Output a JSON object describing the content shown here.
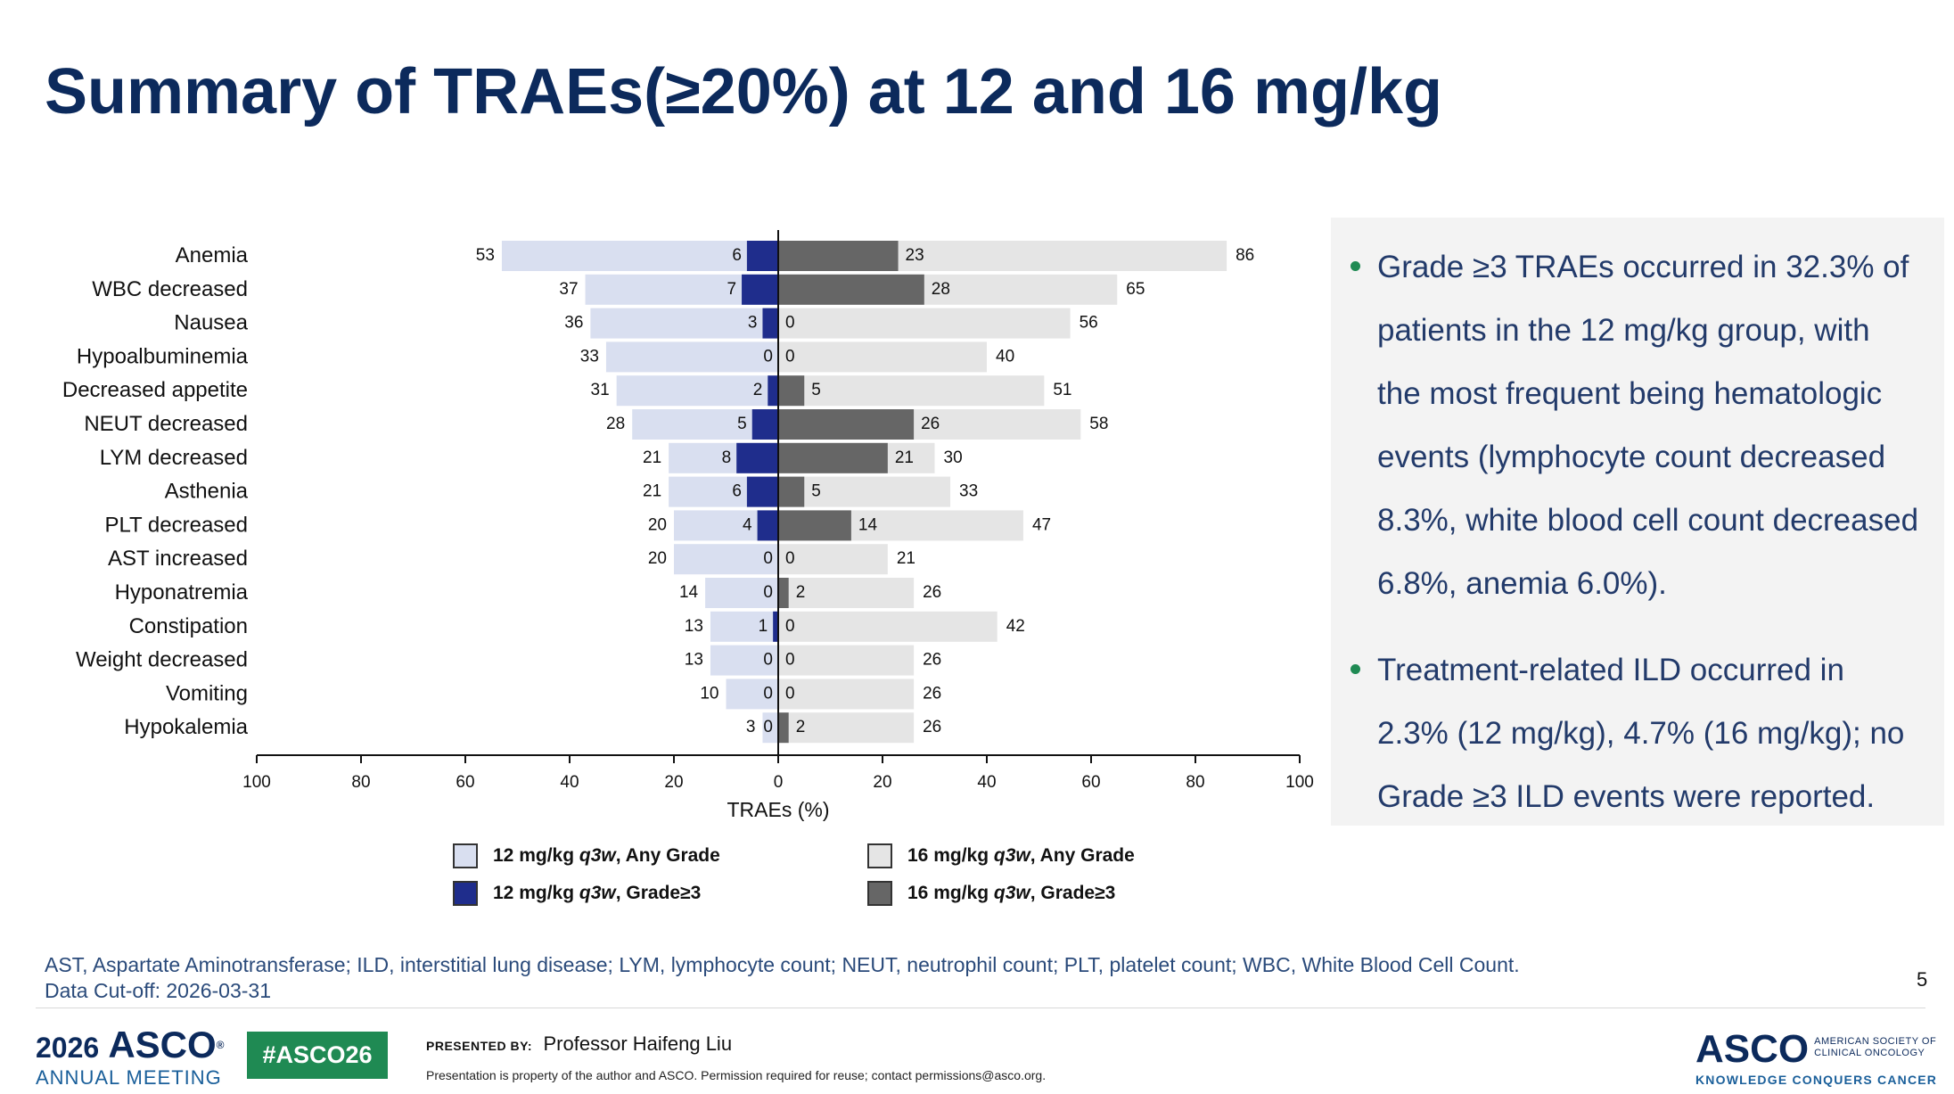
{
  "slide": {
    "title": "Summary of TRAEs(≥20%) at 12 and 16 mg/kg",
    "page_number": "5",
    "footnote_line1": "AST, Aspartate Aminotransferase; ILD, interstitial lung disease; LYM, lymphocyte count; NEUT, neutrophil count; PLT, platelet count; WBC, White Blood Cell Count.",
    "footnote_line2": "Data Cut-off: 2026-03-31"
  },
  "sidebar": {
    "bullets": [
      "Grade ≥3 TRAEs occurred in 32.3% of patients in the 12 mg/kg group, with the most frequent being hematologic events (lymphocyte count decreased 8.3%, white blood cell count decreased 6.8%, anemia 6.0%).",
      "Treatment-related ILD occurred in 2.3% (12 mg/kg), 4.7% (16 mg/kg); no Grade ≥3 ILD events were reported."
    ],
    "bullet_color": "#1f8a53"
  },
  "legend": {
    "items": [
      {
        "label_prefix": "12 mg/kg ",
        "label_em": "q3w",
        "label_suffix": ", Any Grade",
        "color": "#d9dff0"
      },
      {
        "label_prefix": "12 mg/kg ",
        "label_em": "q3w",
        "label_suffix": ", Grade≥3",
        "color": "#1f2d8c"
      },
      {
        "label_prefix": "16 mg/kg ",
        "label_em": "q3w",
        "label_suffix": ", Any Grade",
        "color": "#e5e5e5"
      },
      {
        "label_prefix": "16 mg/kg ",
        "label_em": "q3w",
        "label_suffix": ", Grade≥3",
        "color": "#666666"
      }
    ]
  },
  "footer": {
    "meeting_year": "2026",
    "meeting_brand": "ASCO",
    "meeting_name": "ANNUAL MEETING",
    "hashtag": "#ASCO26",
    "presented_by_label": "PRESENTED BY:",
    "presenter": "Professor Haifeng Liu",
    "property_notice": "Presentation is property of the author and ASCO. Permission required for reuse; contact permissions@asco.org.",
    "org_logo": "ASCO",
    "org_name_line1": "AMERICAN SOCIETY OF",
    "org_name_line2": "CLINICAL ONCOLOGY",
    "org_tagline": "KNOWLEDGE CONQUERS CANCER"
  },
  "chart_data": {
    "type": "bar",
    "orientation": "horizontal-diverging",
    "title": "",
    "xlabel": "TRAEs (%)",
    "ylabel": "",
    "xlim": [
      -100,
      100
    ],
    "x_ticks": [
      100,
      80,
      60,
      40,
      20,
      0,
      20,
      40,
      60,
      80,
      100
    ],
    "categories": [
      "Anemia",
      "WBC decreased",
      "Nausea",
      "Hypoalbuminemia",
      "Decreased appetite",
      "NEUT decreased",
      "LYM decreased",
      "Asthenia",
      "PLT decreased",
      "AST increased",
      "Hyponatremia",
      "Constipation",
      "Weight decreased",
      "Vomiting",
      "Hypokalemia"
    ],
    "series": [
      {
        "name": "12 mg/kg q3w, Any Grade",
        "side": "left",
        "values": [
          53,
          37,
          36,
          33,
          31,
          28,
          21,
          21,
          20,
          20,
          14,
          13,
          13,
          10,
          3
        ]
      },
      {
        "name": "12 mg/kg q3w, Grade≥3",
        "side": "left",
        "values": [
          6,
          7,
          3,
          0,
          2,
          5,
          8,
          6,
          4,
          0,
          0,
          1,
          0,
          0,
          0
        ]
      },
      {
        "name": "16 mg/kg q3w, Any Grade",
        "side": "right",
        "values": [
          86,
          65,
          56,
          40,
          51,
          58,
          30,
          33,
          47,
          21,
          26,
          42,
          26,
          26,
          26
        ]
      },
      {
        "name": "16 mg/kg q3w, Grade≥3",
        "side": "right",
        "values": [
          23,
          28,
          0,
          0,
          5,
          26,
          21,
          5,
          14,
          0,
          2,
          0,
          0,
          0,
          2
        ]
      }
    ],
    "colors": {
      "low_any": "#d9dff0",
      "low_g3": "#1f2d8c",
      "high_any": "#e5e5e5",
      "high_g3": "#666666"
    },
    "grid": false,
    "legend_position": "bottom"
  }
}
